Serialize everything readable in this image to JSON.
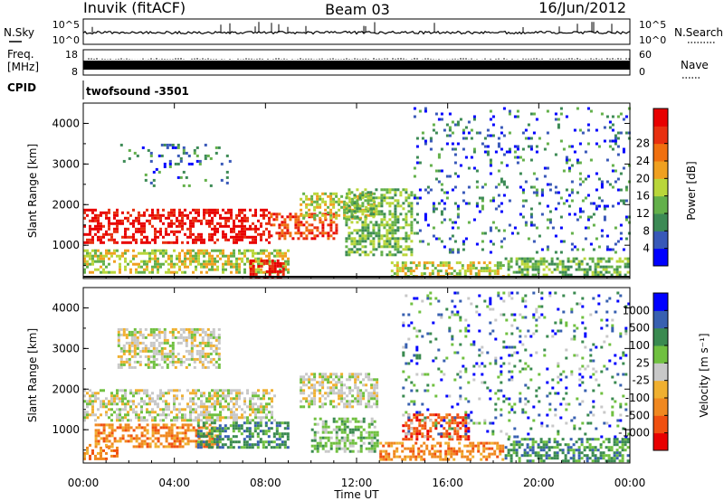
{
  "header": {
    "station": "Inuvik (fitACF)",
    "beam": "Beam 03",
    "date": "16/Jun/2012"
  },
  "noise_panel": {
    "left_label": "N.Sky",
    "right_label": "N.Search",
    "left_ticks": [
      "10^5",
      "10^0"
    ],
    "right_ticks": [
      "10^5",
      "10^0"
    ]
  },
  "freq_panel": {
    "left_label_top": "Freq.",
    "left_label_bottom": "[MHz]",
    "right_label": "Nave",
    "left_ticks": [
      "18",
      "8"
    ],
    "right_ticks": [
      "60",
      "0"
    ]
  },
  "cpid": {
    "label": "CPID",
    "value": "twofsound -3501"
  },
  "time_axis": {
    "title": "Time UT",
    "ticks": [
      "00:00",
      "04:00",
      "08:00",
      "12:00",
      "16:00",
      "20:00",
      "00:00"
    ]
  },
  "chart_data": [
    {
      "type": "heatmap",
      "name": "power",
      "ylabel": "Slant Range [km]",
      "yticks": [
        "1000",
        "2000",
        "3000",
        "4000"
      ],
      "ylim": [
        180,
        4500
      ],
      "xlim_hours": [
        0,
        24
      ],
      "colorbar": {
        "title": "Power [dB]",
        "ticks": [
          "4",
          "8",
          "12",
          "16",
          "20",
          "24",
          "28"
        ],
        "colors": [
          "#0000ff",
          "#3858b8",
          "#3c8a55",
          "#63b04a",
          "#b9d63a",
          "#f0a020",
          "#f07010",
          "#e83010",
          "#e80000"
        ]
      },
      "regions": [
        {
          "t0": 0.0,
          "t1": 8.2,
          "r0": 1050,
          "r1": 1900,
          "v": 26
        },
        {
          "t0": 8.2,
          "t1": 11.2,
          "r0": 1100,
          "r1": 1800,
          "v": 24
        },
        {
          "t0": 9.5,
          "t1": 12.8,
          "r0": 1600,
          "r1": 2300,
          "v": 14
        },
        {
          "t0": 0.0,
          "t1": 9.0,
          "r0": 300,
          "r1": 900,
          "v": 14
        },
        {
          "t0": 7.3,
          "t1": 8.8,
          "r0": 200,
          "r1": 650,
          "v": 28
        },
        {
          "t0": 11.5,
          "t1": 14.5,
          "r0": 700,
          "r1": 2400,
          "v": 11
        },
        {
          "t0": 13.5,
          "t1": 18.5,
          "r0": 200,
          "r1": 600,
          "v": 15
        },
        {
          "t0": 18.5,
          "t1": 24.0,
          "r0": 200,
          "r1": 700,
          "v": 13
        },
        {
          "t0": 1.5,
          "t1": 6.5,
          "r0": 2400,
          "r1": 3500,
          "v": 8
        },
        {
          "t0": 14.5,
          "t1": 24.0,
          "r0": 800,
          "r1": 4400,
          "v": 7
        }
      ]
    },
    {
      "type": "heatmap",
      "name": "velocity",
      "ylabel": "Slant Range [km]",
      "yticks": [
        "1000",
        "2000",
        "3000",
        "4000"
      ],
      "ylim": [
        180,
        4500
      ],
      "xlim_hours": [
        0,
        24
      ],
      "colorbar": {
        "title": "Velocity [m s⁻¹]",
        "ticks": [
          "-1000",
          "-500",
          "-100",
          "-25",
          "25",
          "100",
          "500",
          "1000"
        ],
        "colors": [
          "#e80000",
          "#f05010",
          "#f08820",
          "#f0b030",
          "#c8c8c8",
          "#70c040",
          "#3a8a50",
          "#3860b0",
          "#0000ff"
        ]
      },
      "regions": [
        {
          "t0": 0.0,
          "t1": 8.5,
          "r0": 1200,
          "r1": 2000,
          "v": 4
        },
        {
          "t0": 9.5,
          "t1": 13.0,
          "r0": 1500,
          "r1": 2400,
          "v": 4
        },
        {
          "t0": 0.5,
          "t1": 6.0,
          "r0": 550,
          "r1": 1150,
          "v": 2
        },
        {
          "t0": 0.0,
          "t1": 1.5,
          "r0": 250,
          "r1": 650,
          "v": 2
        },
        {
          "t0": 5.0,
          "t1": 9.0,
          "r0": 500,
          "r1": 1200,
          "v": 6
        },
        {
          "t0": 10.0,
          "t1": 13.0,
          "r0": 400,
          "r1": 1300,
          "v": 5
        },
        {
          "t0": 13.0,
          "t1": 18.5,
          "r0": 200,
          "r1": 700,
          "v": 2
        },
        {
          "t0": 14.0,
          "t1": 17.0,
          "r0": 700,
          "r1": 1400,
          "v": 1
        },
        {
          "t0": 18.5,
          "t1": 24.0,
          "r0": 200,
          "r1": 800,
          "v": 6
        },
        {
          "t0": 1.5,
          "t1": 6.0,
          "r0": 2500,
          "r1": 3500,
          "v": 4
        },
        {
          "t0": 14.0,
          "t1": 24.0,
          "r0": 800,
          "r1": 4400,
          "v": 7
        }
      ]
    }
  ]
}
